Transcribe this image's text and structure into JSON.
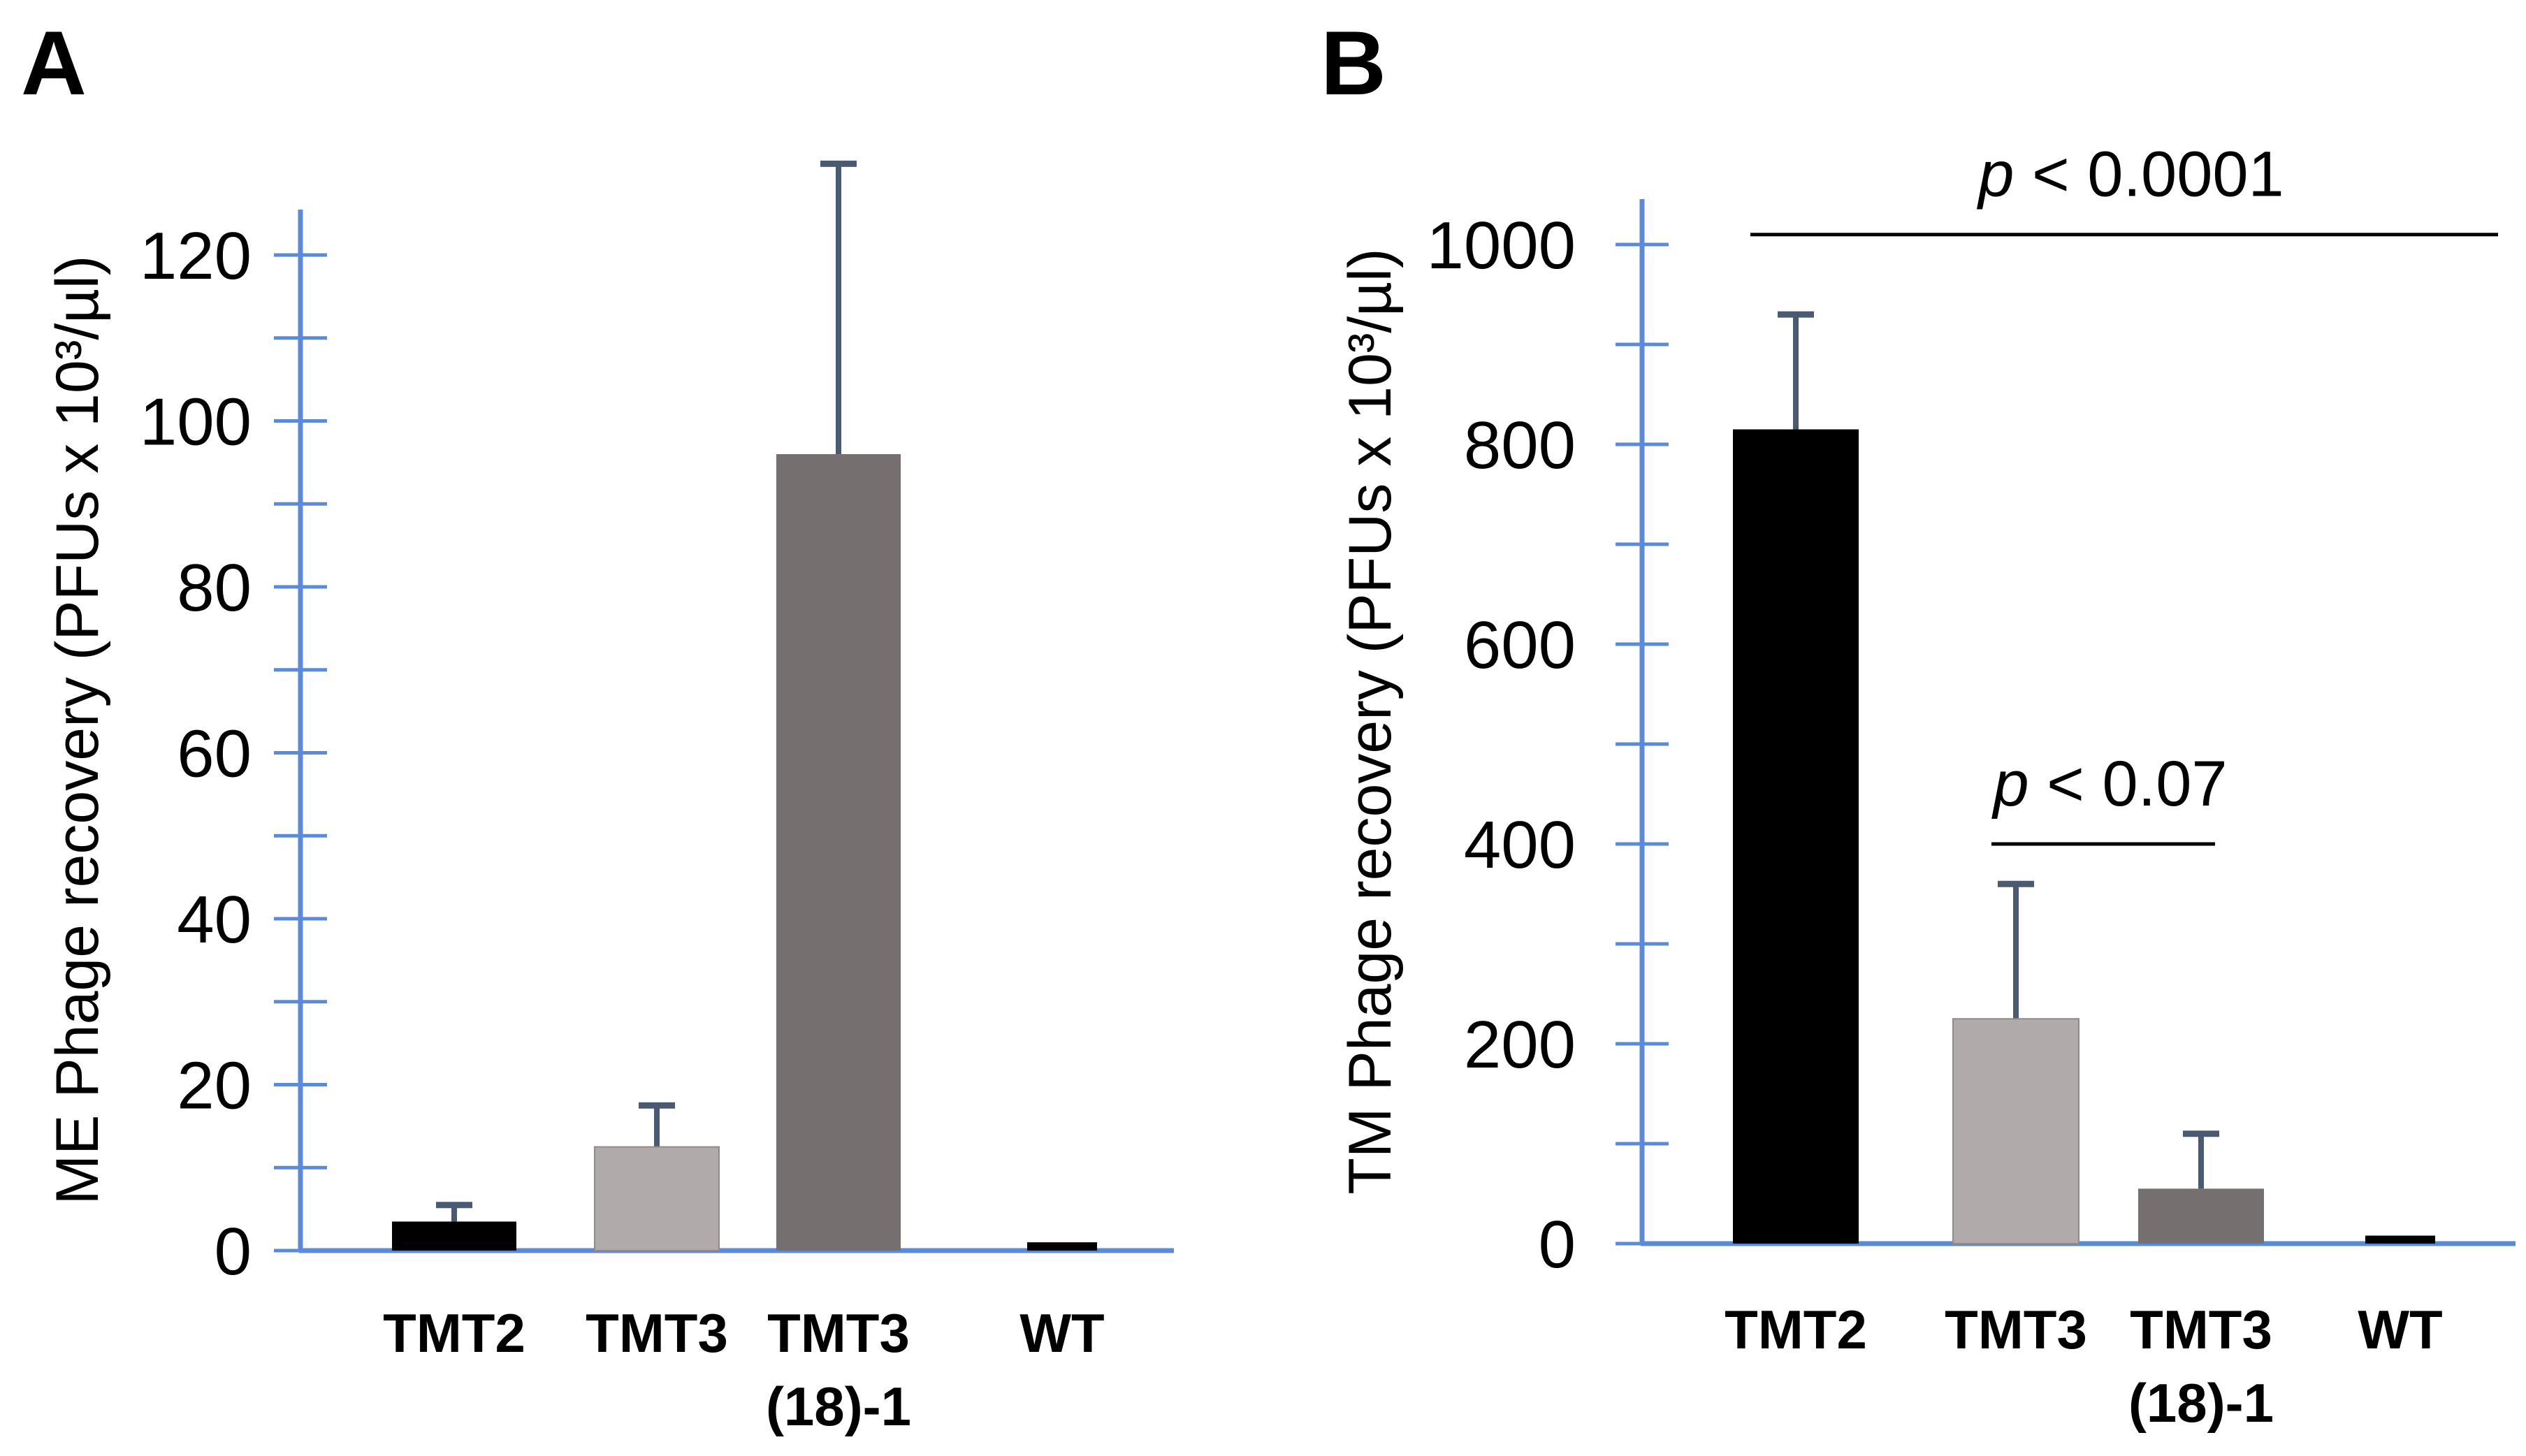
{
  "chart_data": [
    {
      "type": "bar",
      "panel": "A",
      "ylabel": "ME Phage recovery (PFUs x 10³/µl)",
      "categories": [
        [
          "TMT2"
        ],
        [
          "TMT3"
        ],
        [
          "TMT3",
          "(18)-1"
        ],
        [
          "WT"
        ]
      ],
      "values": [
        3.5,
        12.5,
        96,
        1
      ],
      "errors": [
        2,
        5,
        35,
        0
      ],
      "bar_colors": [
        "#000000",
        "#b0abaa",
        "#756f6f",
        "#000000"
      ],
      "ylim": [
        0,
        120
      ],
      "yticks": [
        0,
        20,
        40,
        60,
        80,
        100,
        120
      ],
      "minor_step": 10,
      "annotations": []
    },
    {
      "type": "bar",
      "panel": "B",
      "ylabel": "TM Phage recovery (PFUs x 10³/µl)",
      "categories": [
        [
          "TMT2"
        ],
        [
          "TMT3"
        ],
        [
          "TMT3",
          "(18)-1"
        ],
        [
          "WT"
        ]
      ],
      "values": [
        815,
        225,
        55,
        8
      ],
      "errors": [
        115,
        135,
        55,
        0
      ],
      "bar_colors": [
        "#000000",
        "#b0abaa",
        "#756f6f",
        "#000000"
      ],
      "ylim": [
        0,
        1000
      ],
      "yticks": [
        0,
        200,
        400,
        600,
        800,
        1000
      ],
      "minor_step": 100,
      "annotations": [
        {
          "p": "p",
          "text": " < 0.0001",
          "from": 0,
          "to": 3,
          "y": 1010
        },
        {
          "p": "p",
          "text": " < 0.07",
          "from": 1,
          "to": 2,
          "y": 400
        }
      ]
    }
  ],
  "colors": {
    "axis": "#5b8bd8",
    "error_bar": "#4a5a70"
  }
}
